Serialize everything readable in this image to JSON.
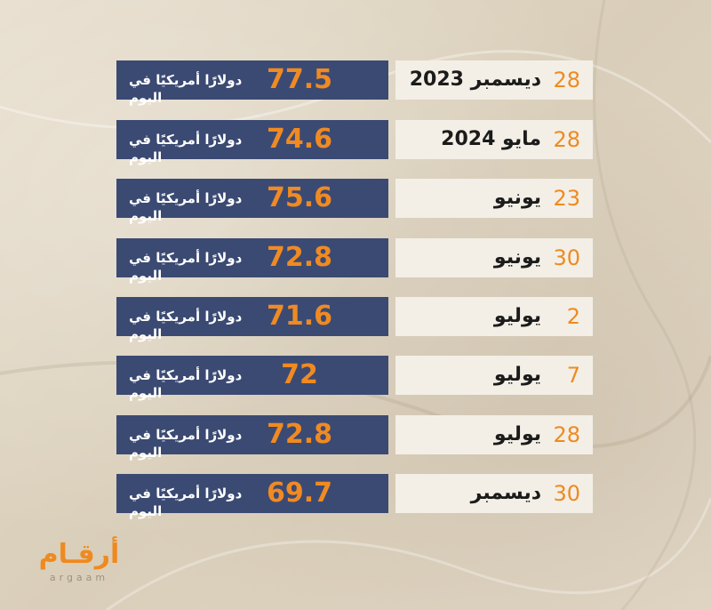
{
  "rows": [
    {
      "day": "28",
      "month": "ديسمبر 2023",
      "value": "77.5",
      "unit": "دولارًا أمريكيًا في اليوم"
    },
    {
      "day": "28",
      "month": "مايو 2024",
      "value": "74.6",
      "unit": "دولارًا أمريكيًا في اليوم"
    },
    {
      "day": "23",
      "month": "يونيو",
      "value": "75.6",
      "unit": "دولارًا أمريكيًا في اليوم"
    },
    {
      "day": "30",
      "month": "يونيو",
      "value": "72.8",
      "unit": "دولارًا أمريكيًا في اليوم"
    },
    {
      "day": "2",
      "month": "يوليو",
      "value": "71.6",
      "unit": "دولارًا أمريكيًا في اليوم"
    },
    {
      "day": "7",
      "month": "يوليو",
      "value": "72",
      "unit": "دولارًا أمريكيًا في اليوم"
    },
    {
      "day": "28",
      "month": "يوليو",
      "value": "72.8",
      "unit": "دولارًا أمريكيًا في اليوم"
    },
    {
      "day": "30",
      "month": "ديسمبر",
      "value": "69.7",
      "unit": "دولارًا أمريكيًا في اليوم"
    }
  ],
  "logo": {
    "arabic": "أرقـام",
    "latin": "argaam"
  },
  "colors": {
    "bar": "#3b4a73",
    "accent": "#f08a22",
    "card": "#f3efe6",
    "background": "#e2d8c6"
  }
}
